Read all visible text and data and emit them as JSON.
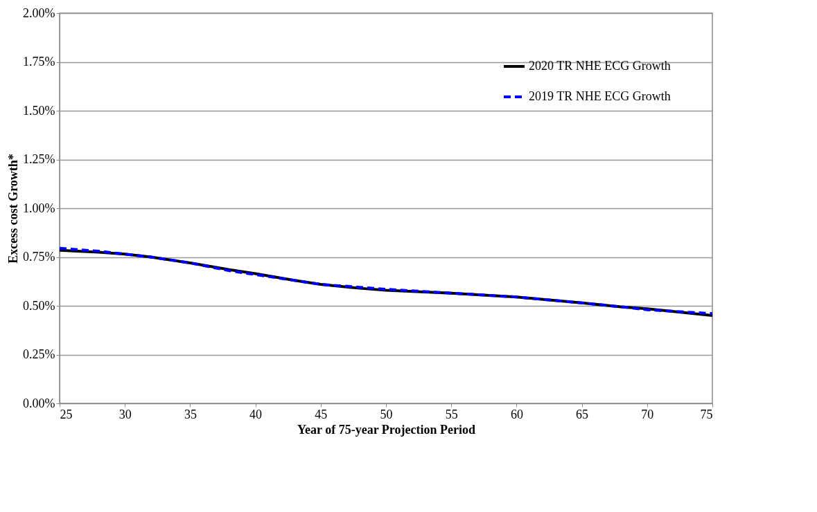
{
  "chart_data": {
    "type": "line",
    "xlabel": "Year of 75-year Projection Period",
    "ylabel": "Excess cost Growth*",
    "x": [
      25,
      28,
      30,
      32,
      35,
      38,
      40,
      43,
      45,
      48,
      50,
      55,
      60,
      65,
      68,
      70,
      75
    ],
    "series": [
      {
        "name": "2020 TR NHE ECG Growth",
        "color": "#000000",
        "line_style": "solid",
        "values": [
          0.785,
          0.775,
          0.765,
          0.75,
          0.72,
          0.685,
          0.665,
          0.63,
          0.61,
          0.59,
          0.58,
          0.565,
          0.545,
          0.515,
          0.495,
          0.485,
          0.45
        ]
      },
      {
        "name": "2019 TR NHE ECG Growth",
        "color": "#0000ff",
        "line_style": "dashed",
        "values": [
          0.795,
          0.78,
          0.765,
          0.75,
          0.72,
          0.68,
          0.66,
          0.63,
          0.61,
          0.595,
          0.585,
          0.565,
          0.545,
          0.515,
          0.495,
          0.48,
          0.46
        ]
      }
    ],
    "xlim": [
      25,
      75
    ],
    "xticks": [
      25,
      30,
      35,
      40,
      45,
      50,
      55,
      60,
      65,
      70,
      75
    ],
    "ylim": [
      0,
      2
    ],
    "yticks": [
      {
        "value": 0,
        "label": "0.00%"
      },
      {
        "value": 0.25,
        "label": "0.25%"
      },
      {
        "value": 0.5,
        "label": "0.50%"
      },
      {
        "value": 0.75,
        "label": "0.75%"
      },
      {
        "value": 1,
        "label": "1.00%"
      },
      {
        "value": 1.25,
        "label": "1.25%"
      },
      {
        "value": 1.5,
        "label": "1.50%"
      },
      {
        "value": 1.75,
        "label": "1.75%"
      },
      {
        "value": 2,
        "label": "2.00%"
      }
    ],
    "grid": "y",
    "legend": "top right"
  }
}
